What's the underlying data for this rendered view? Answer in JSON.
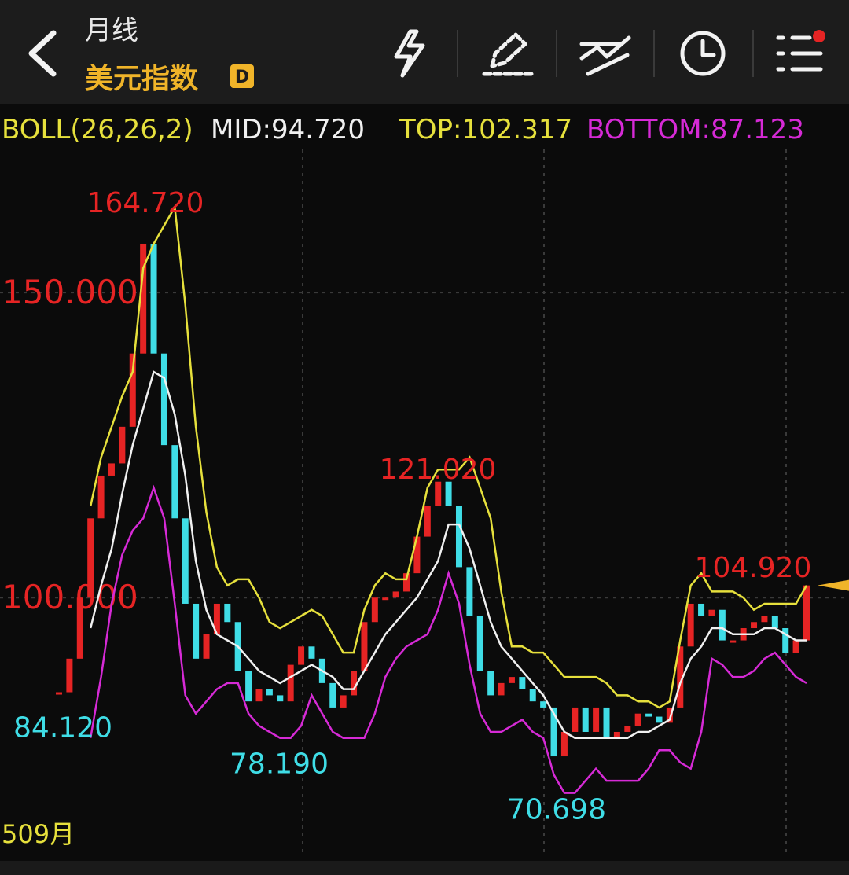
{
  "header": {
    "period": "月线",
    "title": "美元指数",
    "badge": "D"
  },
  "chart_data": {
    "type": "candlestick",
    "indicator": {
      "name": "BOLL(26,26,2)",
      "color": "#e6e03c",
      "mid": {
        "value": 94.72,
        "label": "MID:94.720",
        "color": "#f0f0f0"
      },
      "top": {
        "value": 102.317,
        "label": "TOP:102.317",
        "color": "#e6e03c"
      },
      "bottom": {
        "value": 87.123,
        "label": "BOTTOM:87.123",
        "color": "#d62ad6"
      }
    },
    "close": [
      84.5,
      90,
      100,
      113,
      120,
      122,
      128,
      140,
      158,
      140,
      125,
      113,
      99,
      90,
      94,
      99,
      96,
      88,
      83,
      85,
      84,
      83,
      89,
      92,
      90,
      86,
      82,
      84,
      88,
      96,
      100,
      100,
      101,
      104,
      110,
      115,
      119,
      115,
      105,
      97,
      88,
      84,
      86,
      87,
      85,
      83,
      82,
      74,
      78,
      82,
      78,
      82,
      77,
      78,
      79,
      81,
      80.5,
      79.5,
      82,
      92,
      99,
      97,
      98,
      93,
      93,
      95,
      96,
      97,
      95,
      91,
      93,
      102
    ],
    "up_color": "#e62424",
    "down_color": "#3fdde6",
    "bands": [
      {
        "color": "#e6e03c",
        "values": [
          null,
          null,
          null,
          115,
          123,
          128,
          133,
          137,
          154,
          158,
          161,
          164,
          148,
          128,
          114,
          105,
          102,
          103,
          103,
          100,
          96,
          95,
          96,
          97,
          98,
          97,
          94,
          91,
          91,
          98,
          102,
          104,
          103,
          103,
          110,
          118,
          121,
          121,
          121,
          123,
          118,
          113,
          101,
          92,
          92,
          91,
          91,
          89,
          87,
          87,
          87,
          87,
          86,
          84,
          84,
          83,
          83,
          82,
          83,
          93,
          102,
          104,
          101,
          101,
          101,
          100,
          98,
          99,
          99,
          99,
          99,
          102
        ]
      },
      {
        "color": "#f0f0f0",
        "values": [
          null,
          null,
          null,
          95,
          102,
          108,
          117,
          125,
          131,
          137,
          136,
          130,
          120,
          106,
          98,
          94,
          93,
          92,
          90,
          88,
          87,
          86,
          87,
          88,
          89,
          88,
          87,
          85,
          85,
          88,
          91,
          94,
          96,
          98,
          100,
          103,
          106,
          112,
          112,
          108,
          102,
          96,
          92,
          90,
          88,
          86,
          84,
          81,
          78,
          77,
          77,
          77,
          77,
          77,
          77,
          78,
          78,
          79,
          80,
          86,
          90,
          92,
          95,
          95,
          94,
          94,
          94,
          95,
          95,
          94,
          93,
          93
        ]
      },
      {
        "color": "#d62ad6",
        "values": [
          null,
          null,
          null,
          77,
          87,
          99,
          107,
          111,
          113,
          118,
          113,
          99,
          84,
          81,
          83,
          85,
          86,
          86,
          81,
          79,
          78,
          77,
          77,
          79,
          84,
          81,
          78,
          77,
          77,
          77,
          81,
          87,
          90,
          92,
          93,
          94,
          98,
          104,
          99,
          89,
          81,
          78,
          78,
          79,
          80,
          78,
          77,
          71,
          68,
          68,
          70,
          72,
          70,
          70,
          70,
          70,
          72,
          75,
          75,
          73,
          72,
          78,
          90,
          89,
          87,
          87,
          88,
          90,
          91,
          89,
          87,
          86
        ]
      }
    ],
    "annotations": [
      {
        "value": 164.72,
        "label": "164.720",
        "color": "#e62424",
        "side": "high"
      },
      {
        "value": 121.02,
        "label": "121.020",
        "color": "#e62424",
        "side": "high"
      },
      {
        "value": 104.92,
        "label": "104.920",
        "color": "#e62424",
        "side": "high"
      },
      {
        "value": 84.12,
        "label": "84.120",
        "color": "#3fdde6",
        "side": "low"
      },
      {
        "value": 78.19,
        "label": "78.190",
        "color": "#3fdde6",
        "side": "low"
      },
      {
        "value": 70.698,
        "label": "70.698",
        "color": "#3fdde6",
        "side": "low"
      }
    ],
    "ylim": [
      64.6,
      174.1
    ],
    "yticks": [
      {
        "value": 100,
        "label": "100.000"
      },
      {
        "value": 150,
        "label": "150.000"
      }
    ],
    "tick_color": "#e62424",
    "grid": true,
    "x_label": "509月"
  }
}
